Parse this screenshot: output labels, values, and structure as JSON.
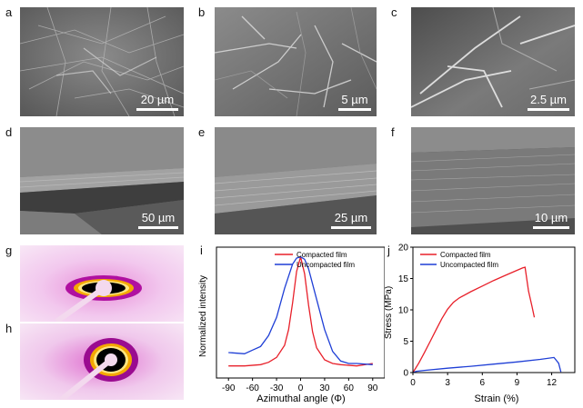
{
  "panel_letters": [
    "a",
    "b",
    "c",
    "d",
    "e",
    "f",
    "g",
    "h",
    "i",
    "j"
  ],
  "sem_panels": [
    {
      "id": "a",
      "scale": "20 µm",
      "bg": "#6f6f6f"
    },
    {
      "id": "b",
      "scale": "5 µm",
      "bg": "#7a7a7a"
    },
    {
      "id": "c",
      "scale": "2.5 µm",
      "bg": "#6e6e6e"
    },
    {
      "id": "d",
      "scale": "50 µm",
      "bg": "#656565"
    },
    {
      "id": "e",
      "scale": "25 µm",
      "bg": "#6b6b6b"
    },
    {
      "id": "f",
      "scale": "10 µm",
      "bg": "#5f5f5f"
    }
  ],
  "chart_data": [
    {
      "id": "i",
      "type": "line",
      "xlabel": "Azimuthal angle (Φ)",
      "ylabel": "Normalized intensity",
      "xlim": [
        -105,
        105
      ],
      "ylim": [
        0,
        1.08
      ],
      "xticks": [
        -90,
        -60,
        -30,
        0,
        30,
        60,
        90
      ],
      "legend_position": "top-right",
      "series": [
        {
          "name": "Compacted film",
          "color": "#e8202a",
          "x": [
            -90,
            -70,
            -50,
            -40,
            -30,
            -20,
            -15,
            -10,
            -5,
            0,
            5,
            10,
            15,
            20,
            30,
            40,
            50,
            70,
            90
          ],
          "y": [
            0.1,
            0.1,
            0.11,
            0.13,
            0.17,
            0.27,
            0.4,
            0.62,
            0.88,
            1.0,
            0.86,
            0.6,
            0.38,
            0.25,
            0.15,
            0.12,
            0.11,
            0.1,
            0.12
          ]
        },
        {
          "name": "Uncompacted film",
          "color": "#1f3fd6",
          "x": [
            -90,
            -70,
            -60,
            -50,
            -40,
            -30,
            -20,
            -10,
            -5,
            0,
            5,
            10,
            20,
            30,
            40,
            50,
            60,
            70,
            90
          ],
          "y": [
            0.21,
            0.2,
            0.23,
            0.26,
            0.35,
            0.5,
            0.74,
            0.94,
            0.99,
            1.0,
            0.98,
            0.9,
            0.65,
            0.4,
            0.22,
            0.14,
            0.12,
            0.12,
            0.11
          ]
        }
      ]
    },
    {
      "id": "j",
      "type": "line",
      "xlabel": "Strain (%)",
      "ylabel": "Stress (MPa)",
      "xlim": [
        0,
        14
      ],
      "ylim": [
        0,
        20
      ],
      "xticks": [
        0,
        3,
        6,
        9,
        12
      ],
      "yticks": [
        0,
        5,
        10,
        15,
        20
      ],
      "legend_position": "top-left",
      "series": [
        {
          "name": "Compacted film",
          "color": "#e8202a",
          "x": [
            0,
            0.5,
            1,
            1.5,
            2,
            2.5,
            3,
            3.5,
            4,
            5,
            6,
            7,
            8,
            9,
            9.5,
            9.7,
            10.0,
            10.3,
            10.5
          ],
          "y": [
            0,
            1.5,
            3.2,
            5.0,
            6.8,
            8.6,
            10.1,
            11.2,
            11.9,
            12.9,
            13.8,
            14.7,
            15.5,
            16.3,
            16.7,
            16.8,
            13.0,
            10.5,
            8.8
          ]
        },
        {
          "name": "Uncompacted film",
          "color": "#1f3fd6",
          "x": [
            0,
            0.3,
            1,
            3,
            5,
            7,
            9,
            11,
            12.2,
            12.6,
            12.8
          ],
          "y": [
            0,
            0.2,
            0.35,
            0.7,
            1.0,
            1.35,
            1.7,
            2.1,
            2.4,
            1.5,
            0.1
          ]
        }
      ]
    }
  ]
}
